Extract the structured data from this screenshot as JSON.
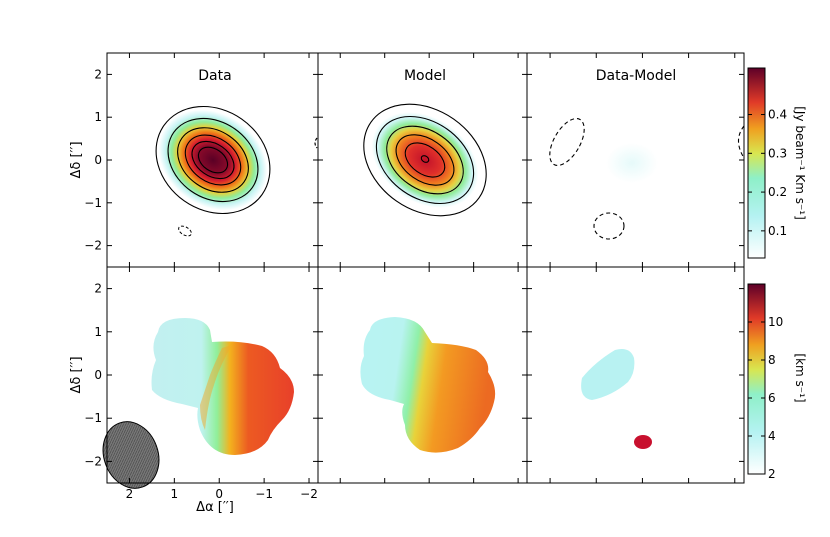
{
  "chart_data": {
    "type": "heatmap",
    "panels": [
      {
        "row": 0,
        "col": 0,
        "title": "Data"
      },
      {
        "row": 0,
        "col": 1,
        "title": "Model"
      },
      {
        "row": 0,
        "col": 2,
        "title": "Data-Model"
      },
      {
        "row": 1,
        "col": 0,
        "title": ""
      },
      {
        "row": 1,
        "col": 1,
        "title": ""
      },
      {
        "row": 1,
        "col": 2,
        "title": ""
      }
    ],
    "xlabel": "Δα [′′]",
    "ylabel": "Δδ [′′]",
    "xlim": [
      2.5,
      -2.2
    ],
    "ylim": [
      -2.5,
      2.5
    ],
    "xticks": [
      2,
      1,
      0,
      -1,
      -2
    ],
    "xtick_labels": [
      "2",
      "1",
      "0",
      "−1",
      "−2"
    ],
    "yticks": [
      2,
      1,
      0,
      -1,
      -2
    ],
    "ytick_labels": [
      "2",
      "1",
      "0",
      "−1",
      "−2"
    ],
    "colorbar_top": {
      "label": "[Jy beam⁻¹ Km s⁻¹]",
      "range": [
        0.03,
        0.52
      ],
      "ticks": [
        0.1,
        0.2,
        0.3,
        0.4
      ],
      "tick_labels": [
        "0.1",
        "0.2",
        "0.3",
        "0.4"
      ]
    },
    "colorbar_bottom": {
      "label": "[km s⁻¹]",
      "range": [
        2,
        12
      ],
      "ticks": [
        2,
        4,
        6,
        8,
        10
      ],
      "tick_labels": [
        "2",
        "4",
        "6",
        "8",
        "10"
      ]
    },
    "moment0_peak": {
      "x": 0.0,
      "y": 0.0,
      "value": 0.5
    },
    "moment0_model_peak": {
      "x": -0.3,
      "y": 0.0,
      "value": 0.48
    },
    "residual_features": [
      {
        "x": 1.8,
        "y": 0.4,
        "sign": "negative"
      },
      {
        "x": 0.5,
        "y": -1.5,
        "sign": "negative"
      },
      {
        "x": -2.2,
        "y": 0.4,
        "sign": "negative"
      },
      {
        "x": 0.7,
        "y": -1.6,
        "panel": "data",
        "sign": "negative"
      }
    ],
    "velocity_range": [
      3,
      11
    ],
    "beam": {
      "x": 2.0,
      "y": -2.0,
      "shape": "ellipse"
    },
    "colormap": [
      "#ffffff",
      "#a8f0f0",
      "#70e6a0",
      "#e8e040",
      "#f07a10",
      "#d82030",
      "#6a0030"
    ]
  }
}
